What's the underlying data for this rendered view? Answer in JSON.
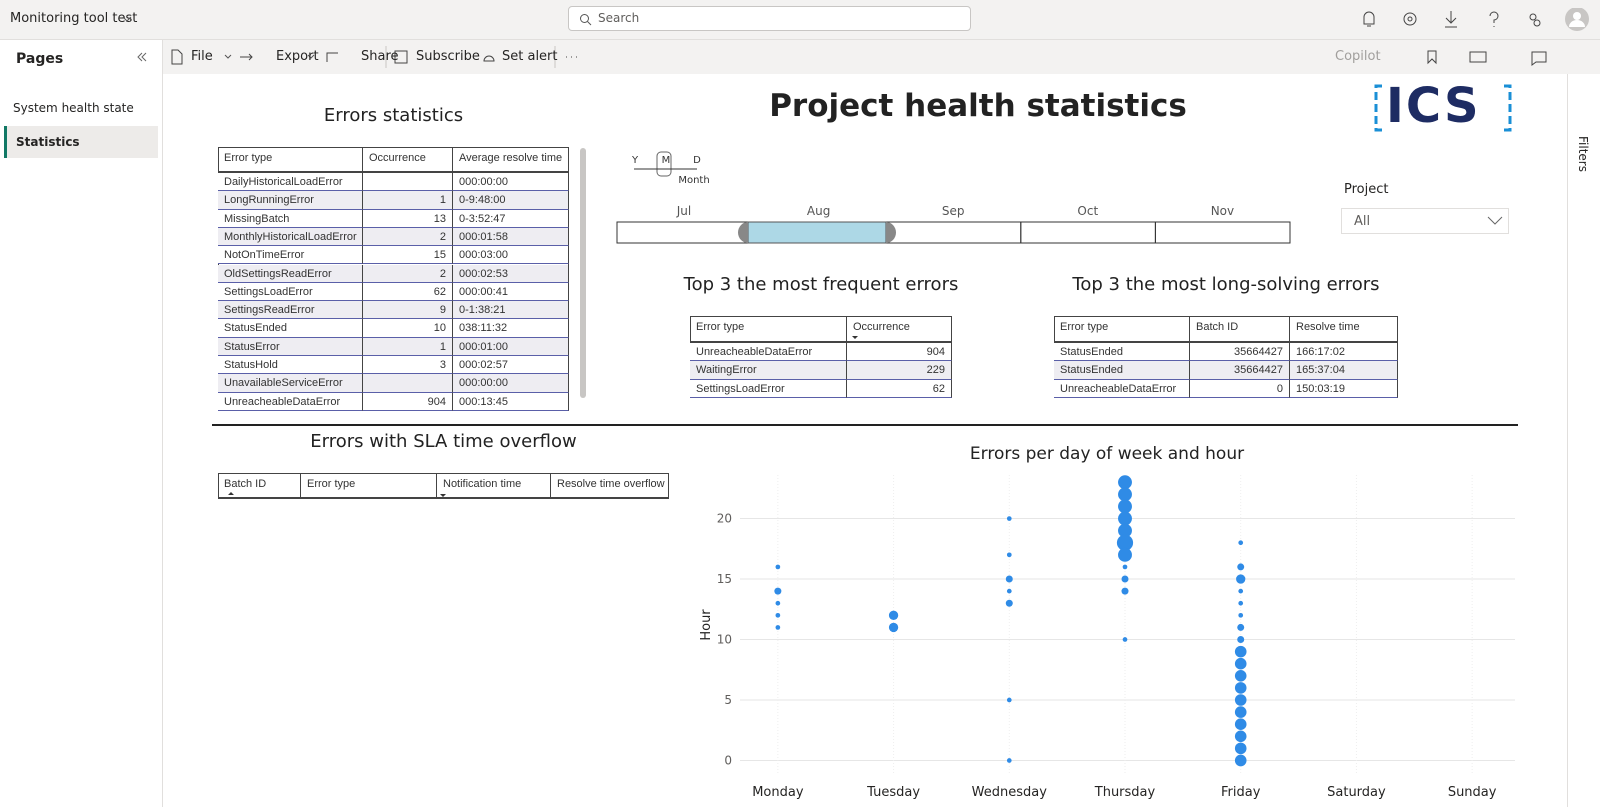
{
  "app": {
    "title": "Monitoring tool test",
    "search": "Search"
  },
  "toolbar": {
    "file": "File",
    "export": "Export",
    "share": "Share",
    "subscribe": "Subscribe",
    "set_alert": "Set alert",
    "copilot": "Copilot"
  },
  "pages": {
    "title": "Pages",
    "items": [
      "System health state",
      "Statistics"
    ]
  },
  "filters": "Filters",
  "report": {
    "title": "Project health statistics",
    "logo": "ICS"
  },
  "errors_statistics": {
    "title": "Errors statistics",
    "columns": [
      "Error type",
      "Occurrence",
      "Average resolve time"
    ],
    "rows": [
      [
        "DailyHistoricalLoadError",
        null,
        "000:00:00"
      ],
      [
        "LongRunningError",
        1,
        "0-9:48:00"
      ],
      [
        "MissingBatch",
        13,
        "0-3:52:47"
      ],
      [
        "MonthlyHistoricalLoadError",
        2,
        "000:01:58"
      ],
      [
        "NotOnTimeError",
        15,
        "000:03:00"
      ],
      [
        "OldSettingsReadError",
        2,
        "000:02:53"
      ],
      [
        "SettingsLoadError",
        62,
        "000:00:41"
      ],
      [
        "SettingsReadError",
        9,
        "0-1:38:21"
      ],
      [
        "StatusEnded",
        10,
        "038:11:32"
      ],
      [
        "StatusError",
        1,
        "000:01:00"
      ],
      [
        "StatusHold",
        3,
        "000:02:57"
      ],
      [
        "UnavailableServiceError",
        null,
        "000:00:00"
      ],
      [
        "UnreacheableDataError",
        904,
        "000:13:45"
      ]
    ]
  },
  "slicer": {
    "levels": [
      "Y",
      "M",
      "D"
    ],
    "level": "Month",
    "months": [
      "Jul",
      "Aug",
      "Sep",
      "Oct",
      "Nov"
    ]
  },
  "project": {
    "label": "Project",
    "value": "All"
  },
  "top_frequent": {
    "title": "Top 3 the most frequent errors",
    "columns": [
      "Error type",
      "Occurrence"
    ],
    "rows": [
      [
        "UnreacheableDataError",
        904
      ],
      [
        "WaitingError",
        229
      ],
      [
        "SettingsLoadError",
        62
      ]
    ]
  },
  "top_long": {
    "title": "Top 3 the most long-solving errors",
    "columns": [
      "Error type",
      "Batch ID",
      "Resolve time"
    ],
    "rows": [
      [
        "StatusEnded",
        35664427,
        "166:17:02"
      ],
      [
        "StatusEnded",
        35664427,
        "165:37:04"
      ],
      [
        "UnreacheableDataError",
        0,
        "150:03:19"
      ]
    ]
  },
  "sla": {
    "title": "Errors with SLA time overflow",
    "columns": [
      "Batch ID",
      "Error type",
      "Notification time",
      "Resolve time overflow"
    ]
  },
  "chart_data": {
    "type": "scatter",
    "title": "Errors per day of week and hour",
    "y_label": "Hour",
    "color": "#2f8be6",
    "categories": [
      "Monday",
      "Tuesday",
      "Wednesday",
      "Thursday",
      "Friday",
      "Saturday",
      "Sunday"
    ],
    "ylim": [
      -1.2,
      23.6
    ],
    "yticks": [
      0,
      5,
      10,
      15,
      20
    ],
    "grid": true,
    "points": [
      {
        "x": "Monday",
        "y": 16,
        "size": 1
      },
      {
        "x": "Monday",
        "y": 14,
        "size": 2
      },
      {
        "x": "Monday",
        "y": 13,
        "size": 1
      },
      {
        "x": "Monday",
        "y": 12,
        "size": 1
      },
      {
        "x": "Monday",
        "y": 11,
        "size": 1
      },
      {
        "x": "Tuesday",
        "y": 12,
        "size": 3
      },
      {
        "x": "Tuesday",
        "y": 11,
        "size": 3
      },
      {
        "x": "Wednesday",
        "y": 20,
        "size": 1
      },
      {
        "x": "Wednesday",
        "y": 17,
        "size": 1
      },
      {
        "x": "Wednesday",
        "y": 15,
        "size": 2
      },
      {
        "x": "Wednesday",
        "y": 14,
        "size": 1
      },
      {
        "x": "Wednesday",
        "y": 13,
        "size": 2
      },
      {
        "x": "Wednesday",
        "y": 5,
        "size": 1
      },
      {
        "x": "Wednesday",
        "y": 0,
        "size": 1
      },
      {
        "x": "Thursday",
        "y": 23,
        "size": 5
      },
      {
        "x": "Thursday",
        "y": 22,
        "size": 5
      },
      {
        "x": "Thursday",
        "y": 21,
        "size": 5
      },
      {
        "x": "Thursday",
        "y": 20,
        "size": 5
      },
      {
        "x": "Thursday",
        "y": 19,
        "size": 5
      },
      {
        "x": "Thursday",
        "y": 18,
        "size": 6
      },
      {
        "x": "Thursday",
        "y": 17,
        "size": 5
      },
      {
        "x": "Thursday",
        "y": 16,
        "size": 1
      },
      {
        "x": "Thursday",
        "y": 15,
        "size": 2
      },
      {
        "x": "Thursday",
        "y": 14,
        "size": 2
      },
      {
        "x": "Thursday",
        "y": 10,
        "size": 1
      },
      {
        "x": "Friday",
        "y": 18,
        "size": 1
      },
      {
        "x": "Friday",
        "y": 16,
        "size": 2
      },
      {
        "x": "Friday",
        "y": 15,
        "size": 3
      },
      {
        "x": "Friday",
        "y": 14,
        "size": 1
      },
      {
        "x": "Friday",
        "y": 13,
        "size": 1
      },
      {
        "x": "Friday",
        "y": 12,
        "size": 1
      },
      {
        "x": "Friday",
        "y": 11,
        "size": 2
      },
      {
        "x": "Friday",
        "y": 10,
        "size": 2
      },
      {
        "x": "Friday",
        "y": 9,
        "size": 4
      },
      {
        "x": "Friday",
        "y": 8,
        "size": 4
      },
      {
        "x": "Friday",
        "y": 7,
        "size": 4
      },
      {
        "x": "Friday",
        "y": 6,
        "size": 4
      },
      {
        "x": "Friday",
        "y": 5,
        "size": 4
      },
      {
        "x": "Friday",
        "y": 4,
        "size": 4
      },
      {
        "x": "Friday",
        "y": 3,
        "size": 4
      },
      {
        "x": "Friday",
        "y": 2,
        "size": 4
      },
      {
        "x": "Friday",
        "y": 1,
        "size": 4
      },
      {
        "x": "Friday",
        "y": 0,
        "size": 4
      }
    ]
  }
}
